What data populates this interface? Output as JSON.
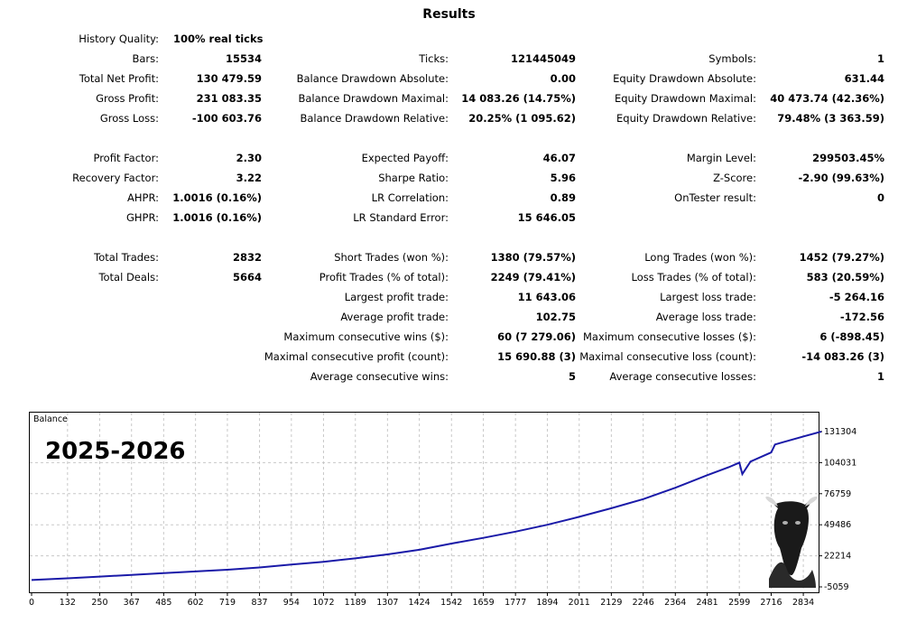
{
  "report": {
    "title": "Results",
    "history_quality": {
      "label": "History Quality:",
      "value": "100% real ticks"
    },
    "rows": [
      [
        {
          "label": "Bars:",
          "value": "15534"
        },
        {
          "label": "Ticks:",
          "value": "121445049"
        },
        {
          "label": "Symbols:",
          "value": "1"
        }
      ],
      [
        {
          "label": "Total Net Profit:",
          "value": "130 479.59"
        },
        {
          "label": "Balance Drawdown Absolute:",
          "value": "0.00"
        },
        {
          "label": "Equity Drawdown Absolute:",
          "value": "631.44"
        }
      ],
      [
        {
          "label": "Gross Profit:",
          "value": "231 083.35"
        },
        {
          "label": "Balance Drawdown Maximal:",
          "value": "14 083.26 (14.75%)"
        },
        {
          "label": "Equity Drawdown Maximal:",
          "value": "40 473.74 (42.36%)"
        }
      ],
      [
        {
          "label": "Gross Loss:",
          "value": "-100 603.76"
        },
        {
          "label": "Balance Drawdown Relative:",
          "value": "20.25% (1 095.62)"
        },
        {
          "label": "Equity Drawdown Relative:",
          "value": "79.48% (3 363.59)"
        }
      ],
      [
        {
          "label": "Profit Factor:",
          "value": "2.30"
        },
        {
          "label": "Expected Payoff:",
          "value": "46.07"
        },
        {
          "label": "Margin Level:",
          "value": "299503.45%"
        }
      ],
      [
        {
          "label": "Recovery Factor:",
          "value": "3.22"
        },
        {
          "label": "Sharpe Ratio:",
          "value": "5.96"
        },
        {
          "label": "Z-Score:",
          "value": "-2.90 (99.63%)"
        }
      ],
      [
        {
          "label": "AHPR:",
          "value": "1.0016 (0.16%)"
        },
        {
          "label": "LR Correlation:",
          "value": "0.89"
        },
        {
          "label": "OnTester result:",
          "value": "0"
        }
      ],
      [
        {
          "label": "GHPR:",
          "value": "1.0016 (0.16%)"
        },
        {
          "label": "LR Standard Error:",
          "value": "15 646.05"
        },
        {
          "label": "",
          "value": ""
        }
      ],
      [
        {
          "label": "Total Trades:",
          "value": "2832"
        },
        {
          "label": "Short Trades (won %):",
          "value": "1380 (79.57%)"
        },
        {
          "label": "Long Trades (won %):",
          "value": "1452 (79.27%)"
        }
      ],
      [
        {
          "label": "Total Deals:",
          "value": "5664"
        },
        {
          "label": "Profit Trades (% of total):",
          "value": "2249 (79.41%)"
        },
        {
          "label": "Loss Trades (% of total):",
          "value": "583 (20.59%)"
        }
      ],
      [
        {
          "label": "",
          "value": ""
        },
        {
          "label": "Largest profit trade:",
          "value": "11 643.06"
        },
        {
          "label": "Largest loss trade:",
          "value": "-5 264.16"
        }
      ],
      [
        {
          "label": "",
          "value": ""
        },
        {
          "label": "Average profit trade:",
          "value": "102.75"
        },
        {
          "label": "Average loss trade:",
          "value": "-172.56"
        }
      ],
      [
        {
          "label": "",
          "value": ""
        },
        {
          "label": "Maximum consecutive wins ($):",
          "value": "60 (7 279.06)"
        },
        {
          "label": "Maximum consecutive losses ($):",
          "value": "6 (-898.45)"
        }
      ],
      [
        {
          "label": "",
          "value": ""
        },
        {
          "label": "Maximal consecutive profit (count):",
          "value": "15 690.88 (3)"
        },
        {
          "label": "Maximal consecutive loss (count):",
          "value": "-14 083.26 (3)"
        }
      ],
      [
        {
          "label": "",
          "value": ""
        },
        {
          "label": "Average consecutive wins:",
          "value": "5"
        },
        {
          "label": "Average consecutive losses:",
          "value": "1"
        }
      ]
    ]
  },
  "chart_data": {
    "type": "line",
    "title": "Balance",
    "annotation": "2025-2026",
    "ylim": [
      -5059,
      131304
    ],
    "y_ticks": [
      "131304",
      "104031",
      "76759",
      "49486",
      "22214",
      "-5059"
    ],
    "y_tick_values": [
      131304,
      104031,
      76759,
      49486,
      22214,
      -5059
    ],
    "x_ticks": [
      "0",
      "132",
      "250",
      "367",
      "485",
      "602",
      "719",
      "837",
      "954",
      "1072",
      "1189",
      "1307",
      "1424",
      "1542",
      "1659",
      "1777",
      "1894",
      "2011",
      "2129",
      "2246",
      "2364",
      "2481",
      "2599",
      "2716",
      "2834"
    ],
    "xlim": [
      0,
      2900
    ],
    "grid": true,
    "series": [
      {
        "color": "#1a1aa8",
        "x": [
          0,
          132,
          250,
          367,
          485,
          602,
          719,
          837,
          954,
          1072,
          1189,
          1307,
          1424,
          1542,
          1659,
          1777,
          1894,
          2011,
          2129,
          2246,
          2364,
          2481,
          2560,
          2599,
          2610,
          2640,
          2716,
          2730,
          2760,
          2834,
          2900
        ],
        "y": [
          1000,
          2500,
          4000,
          5500,
          7000,
          8500,
          10000,
          12000,
          14500,
          17000,
          20000,
          23500,
          27500,
          33000,
          38000,
          43500,
          49500,
          56500,
          64000,
          72000,
          82000,
          93000,
          100000,
          104000,
          94000,
          105000,
          113000,
          120000,
          122000,
          127000,
          131304
        ]
      }
    ],
    "colors": {
      "line": "#1a1aa8",
      "grid": "#c8c8c8",
      "axis": "#000000"
    }
  }
}
